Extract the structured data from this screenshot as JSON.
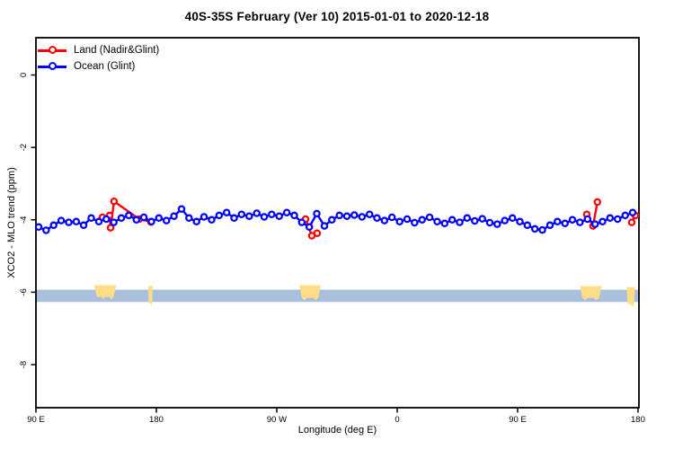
{
  "chart_data": {
    "type": "line",
    "title": "40S-35S February (Ver 10)   2015-01-01 to 2020-12-18",
    "xlabel": "Longitude (deg E)",
    "ylabel": "XCO2 - MLO trend (ppm)",
    "xlim": [
      90,
      540.7
    ],
    "ylim": [
      -9.19,
      1.03
    ],
    "grid": false,
    "x_ticks": [
      {
        "lon": 90,
        "label": "90 E"
      },
      {
        "lon": 180,
        "label": "180"
      },
      {
        "lon": 270,
        "label": "90 W"
      },
      {
        "lon": 360,
        "label": "0"
      },
      {
        "lon": 450,
        "label": "90 E"
      },
      {
        "lon": 540,
        "label": "180"
      }
    ],
    "y_ticks": [
      {
        "val": 0,
        "label": "0"
      },
      {
        "val": -2,
        "label": "-2"
      },
      {
        "val": -4,
        "label": "-4"
      },
      {
        "val": -6,
        "label": "-6"
      },
      {
        "val": -8,
        "label": "-8"
      }
    ],
    "legend": {
      "position": "top-left",
      "items": [
        {
          "label": "Land (Nadir&Glint)",
          "color": "#FF0000"
        },
        {
          "label": "Ocean (Glint)",
          "color": "#0000FF"
        }
      ]
    },
    "series": [
      {
        "name": "Land (Nadir&Glint)",
        "color": "#FF0000",
        "style": "line+open-circle",
        "segments": [
          [
            [
              139.7,
              -3.93
            ],
            [
              145.1,
              -3.88
            ],
            [
              145.8,
              -4.22
            ],
            [
              148.4,
              -3.49
            ],
            [
              167.2,
              -3.98
            ],
            [
              176.0,
              -4.06
            ]
          ],
          [
            [
              291.5,
              -3.98
            ],
            [
              296.2,
              -4.44
            ],
            [
              300.2,
              -4.37
            ]
          ],
          [
            [
              501.7,
              -3.85
            ],
            [
              506.4,
              -4.17
            ],
            [
              509.7,
              -3.51
            ]
          ],
          [
            [
              535.3,
              -4.07
            ],
            [
              538.0,
              -3.88
            ]
          ]
        ]
      },
      {
        "name": "Ocean (Glint)",
        "color": "#0000FF",
        "style": "line+open-circle",
        "segments": [
          [
            [
              92,
              -4.2
            ],
            [
              97.6,
              -4.29
            ],
            [
              103.2,
              -4.15
            ],
            [
              108.9,
              -4.02
            ],
            [
              114.5,
              -4.07
            ],
            [
              120.1,
              -4.05
            ],
            [
              125.7,
              -4.15
            ],
            [
              131.3,
              -3.95
            ],
            [
              137,
              -4.05
            ],
            [
              142.6,
              -3.98
            ],
            [
              148.2,
              -4.07
            ],
            [
              153.8,
              -3.95
            ],
            [
              159.4,
              -3.88
            ],
            [
              165.1,
              -4.0
            ],
            [
              170.7,
              -3.93
            ],
            [
              176.3,
              -4.05
            ],
            [
              181.9,
              -3.95
            ],
            [
              187.5,
              -4.02
            ],
            [
              193.2,
              -3.9
            ],
            [
              198.8,
              -3.7
            ],
            [
              204.4,
              -3.95
            ],
            [
              210,
              -4.05
            ],
            [
              215.6,
              -3.92
            ],
            [
              221.3,
              -4.0
            ],
            [
              226.9,
              -3.88
            ],
            [
              232.5,
              -3.8
            ],
            [
              238.1,
              -3.95
            ],
            [
              243.7,
              -3.85
            ],
            [
              249.4,
              -3.9
            ],
            [
              255,
              -3.82
            ],
            [
              260.6,
              -3.92
            ],
            [
              266.2,
              -3.85
            ],
            [
              271.8,
              -3.9
            ],
            [
              277.5,
              -3.8
            ],
            [
              283.1,
              -3.88
            ],
            [
              288.7,
              -4.07
            ],
            [
              294.3,
              -4.2
            ],
            [
              299.9,
              -3.83
            ],
            [
              305.6,
              -4.17
            ],
            [
              311.2,
              -4.0
            ],
            [
              316.8,
              -3.88
            ],
            [
              322.4,
              -3.9
            ],
            [
              328,
              -3.87
            ],
            [
              333.7,
              -3.92
            ],
            [
              339.3,
              -3.85
            ],
            [
              344.9,
              -3.95
            ],
            [
              350.5,
              -4.02
            ],
            [
              356.1,
              -3.93
            ],
            [
              361.8,
              -4.05
            ],
            [
              367.4,
              -3.98
            ],
            [
              373,
              -4.08
            ],
            [
              378.6,
              -4.0
            ],
            [
              384.2,
              -3.93
            ],
            [
              389.9,
              -4.05
            ],
            [
              395.5,
              -4.1
            ],
            [
              401.1,
              -4.0
            ],
            [
              406.7,
              -4.07
            ],
            [
              412.3,
              -3.95
            ],
            [
              418,
              -4.03
            ],
            [
              423.6,
              -3.97
            ],
            [
              429.2,
              -4.08
            ],
            [
              434.8,
              -4.12
            ],
            [
              440.4,
              -4.02
            ],
            [
              446.1,
              -3.95
            ],
            [
              451.7,
              -4.05
            ],
            [
              457.3,
              -4.15
            ],
            [
              462.9,
              -4.25
            ],
            [
              468.5,
              -4.28
            ],
            [
              474.2,
              -4.15
            ],
            [
              479.8,
              -4.05
            ],
            [
              485.4,
              -4.1
            ],
            [
              491,
              -4.0
            ],
            [
              496.6,
              -4.07
            ],
            [
              502.3,
              -3.98
            ],
            [
              507.9,
              -4.12
            ],
            [
              513.5,
              -4.05
            ],
            [
              519.1,
              -3.95
            ],
            [
              524.7,
              -3.98
            ],
            [
              530.4,
              -3.88
            ],
            [
              536,
              -3.8
            ]
          ]
        ]
      }
    ],
    "map_band": {
      "value_top": -5.93,
      "value_bottom": -6.27,
      "ocean_color": "#A9BFDC",
      "land_color": "#FFDC85",
      "land_segments": [
        {
          "from": 133.5,
          "to": 150.0,
          "top": -5,
          "bottom": -4
        },
        {
          "from": 173.8,
          "to": 177.3,
          "top": -4,
          "bottom": 3
        },
        {
          "from": 286.8,
          "to": 302.9,
          "top": -5,
          "bottom": -3
        },
        {
          "from": 496.5,
          "to": 512.9,
          "top": -4,
          "bottom": -3
        },
        {
          "from": 531.5,
          "to": 537.8,
          "top": -3,
          "bottom": 4
        }
      ]
    }
  }
}
